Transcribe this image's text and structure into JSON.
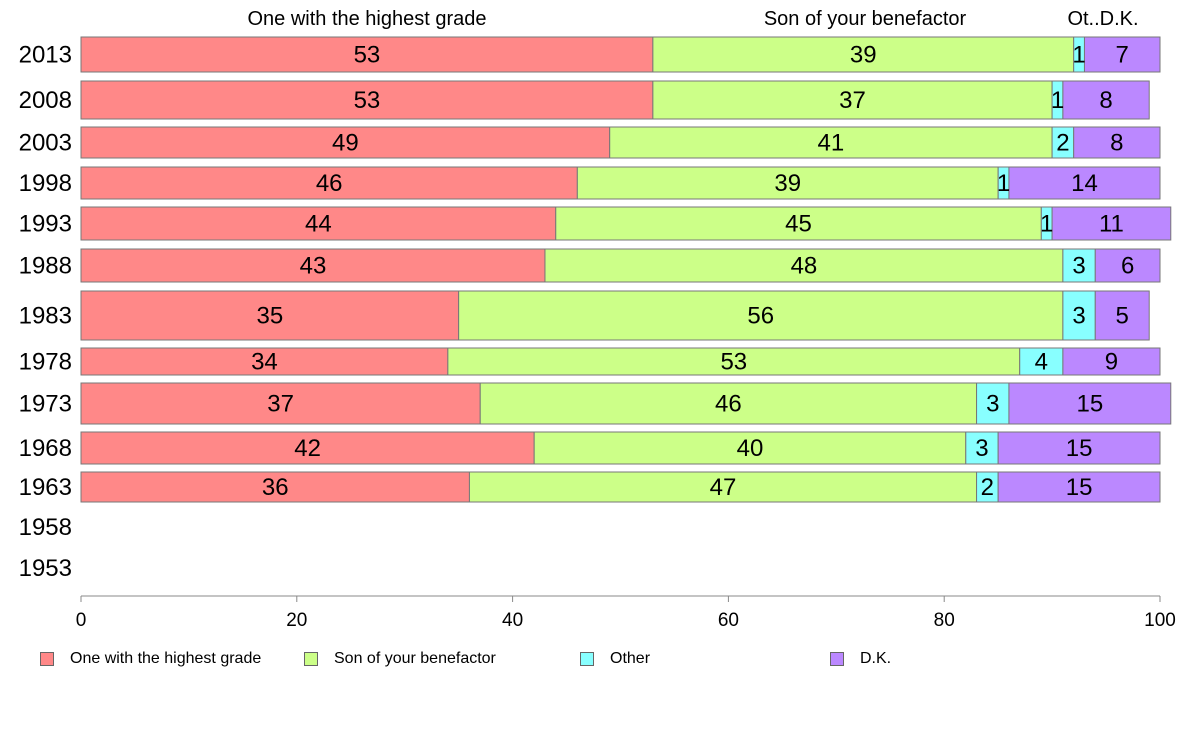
{
  "chart_data": {
    "type": "bar",
    "orientation": "horizontal",
    "stacked": true,
    "categories": [
      "2013",
      "2008",
      "2003",
      "1998",
      "1993",
      "1988",
      "1983",
      "1978",
      "1973",
      "1968",
      "1963",
      "1958",
      "1953"
    ],
    "series": [
      {
        "name": "One with the highest grade",
        "color": "#ff8888",
        "values": [
          53,
          53,
          49,
          46,
          44,
          43,
          35,
          34,
          37,
          42,
          36,
          null,
          null
        ]
      },
      {
        "name": "Son of your benefactor",
        "color": "#ccff88",
        "values": [
          39,
          37,
          41,
          39,
          45,
          48,
          56,
          53,
          46,
          40,
          47,
          null,
          null
        ]
      },
      {
        "name": "Other",
        "color": "#88ffff",
        "values": [
          1,
          1,
          2,
          1,
          1,
          3,
          3,
          4,
          3,
          3,
          2,
          null,
          null
        ]
      },
      {
        "name": "D.K.",
        "color": "#bb88ff",
        "values": [
          7,
          8,
          8,
          14,
          11,
          6,
          5,
          9,
          15,
          15,
          15,
          null,
          null
        ]
      }
    ],
    "column_headers": [
      "One with the highest grade",
      "Son of your benefactor",
      "Ot..D.K."
    ],
    "xlim": [
      0,
      100
    ],
    "xticks": [
      0,
      20,
      40,
      60,
      80,
      100
    ],
    "grid": false,
    "legend_position": "bottom"
  }
}
